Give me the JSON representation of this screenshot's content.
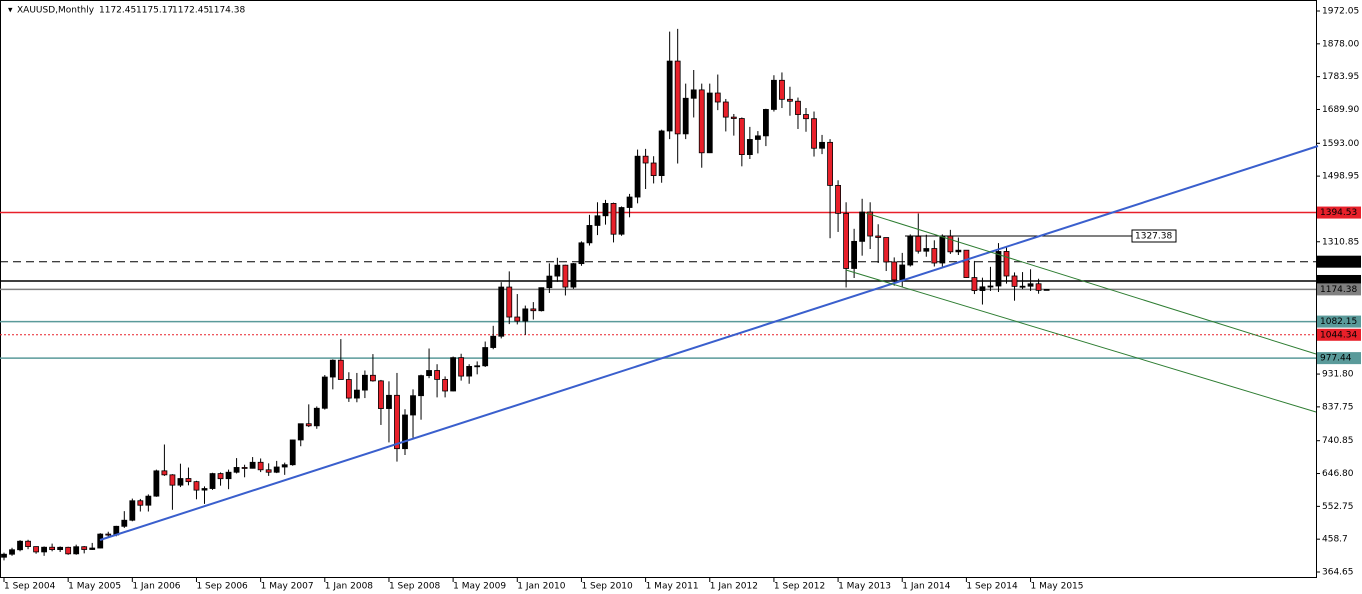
{
  "chart_data": {
    "type": "candlestick",
    "header": {
      "symbol": "XAUUSD,Monthly",
      "open": 1172.45,
      "high": 1175.17,
      "low": 1172.45,
      "close": 1174.38
    },
    "categories": [
      "1 Sep 2004",
      null,
      null,
      null,
      null,
      null,
      null,
      null,
      "1 May 2005",
      null,
      null,
      null,
      null,
      null,
      null,
      null,
      "1 Jan 2006",
      null,
      null,
      null,
      null,
      null,
      null,
      null,
      "1 Sep 2006",
      null,
      null,
      null,
      null,
      null,
      null,
      null,
      "1 May 2007",
      null,
      null,
      null,
      null,
      null,
      null,
      null,
      "1 Jan 2008",
      null,
      null,
      null,
      null,
      null,
      null,
      null,
      "1 Sep 2008",
      null,
      null,
      null,
      null,
      null,
      null,
      null,
      "1 May 2009",
      null,
      null,
      null,
      null,
      null,
      null,
      null,
      "1 Jan 2010",
      null,
      null,
      null,
      null,
      null,
      null,
      null,
      "1 Sep 2010",
      null,
      null,
      null,
      null,
      null,
      null,
      null,
      "1 May 2011",
      null,
      null,
      null,
      null,
      null,
      null,
      null,
      "1 Jan 2012",
      null,
      null,
      null,
      null,
      null,
      null,
      null,
      "1 Sep 2012",
      null,
      null,
      null,
      null,
      null,
      null,
      null,
      "1 May 2013",
      null,
      null,
      null,
      null,
      null,
      null,
      null,
      "1 Jan 2014",
      null,
      null,
      null,
      null,
      null,
      null,
      null,
      "1 Sep 2014",
      null,
      null,
      null,
      null,
      null,
      null,
      null,
      "1 May 2015",
      null,
      null
    ],
    "open": [
      407,
      415.6,
      428.4,
      452.8,
      437.5,
      422.2,
      435.6,
      428.8,
      435.4,
      416.7,
      437.1,
      429.1,
      433.3,
      473.3,
      470.8,
      495.6,
      513.0,
      568.8,
      556.0,
      582.0,
      654.5,
      643.0,
      613.5,
      632.5,
      623.5,
      599.3,
      603.8,
      646.7,
      632.0,
      650.5,
      664.2,
      661.8,
      679.0,
      657.5,
      650.5,
      665.5,
      672.0,
      743.0,
      789.5,
      783.5,
      833.8,
      923.3,
      971.5,
      916.2,
      863.0,
      885.8,
      928.3,
      912.3,
      833.0,
      870.9,
      718.0,
      814.5,
      869.8,
      927.3,
      942.0,
      916.5,
      883.3,
      978.8,
      926.0,
      953.7,
      955.5,
      1007.8,
      1040.2,
      1181.1,
      1095.2,
      1083.5,
      1118.5,
      1113.3,
      1179.3,
      1212.5,
      1243.8,
      1181.0,
      1248.2,
      1307.8,
      1357.6,
      1385.3,
      1420.8,
      1332.5,
      1409.0,
      1439.0,
      1556.0,
      1536.5,
      1500.4,
      1628.3,
      1828.5,
      1620.0,
      1722.0,
      1746.0,
      1565.8,
      1737.0,
      1711.3,
      1668.0,
      1664.0,
      1560.6,
      1604.0,
      1614.3,
      1690.0,
      1773.5,
      1719.0,
      1713.5,
      1675.4,
      1663.5,
      1578.8,
      1595.7,
      1472.3,
      1392.2,
      1234.3,
      1312.0,
      1396.0,
      1327.3,
      1323.0,
      1253.0,
      1201.6,
      1244.3,
      1326.5,
      1283.8,
      1291.5,
      1250.0,
      1327.3,
      1282.0,
      1286.7,
      1208.3,
      1171.0,
      1181.8,
      1184.1,
      1283.1,
      1212.8,
      1183.0,
      1183.5,
      1190.5,
      1172.45
    ],
    "high": [
      420,
      434,
      456,
      457,
      438,
      438,
      446,
      438,
      437,
      443,
      439,
      448,
      476,
      480,
      497,
      539,
      575,
      574,
      587,
      658,
      730,
      645,
      675,
      664,
      626,
      610,
      649,
      650,
      658,
      691,
      672,
      694,
      690,
      676,
      683,
      678,
      744,
      790,
      845,
      839,
      929,
      974,
      1032,
      937,
      935,
      942,
      989,
      915,
      911,
      935,
      831,
      888,
      930,
      1005,
      960,
      925,
      982,
      990,
      960,
      968,
      1025,
      1070,
      1195,
      1226,
      1161,
      1128,
      1138,
      1180,
      1249,
      1265,
      1245,
      1250,
      1312,
      1388,
      1424,
      1431,
      1423,
      1412,
      1448,
      1575,
      1577,
      1556,
      1632,
      1913,
      1921,
      1764,
      1803,
      1764,
      1764,
      1790,
      1720,
      1677,
      1667,
      1640,
      1628,
      1692,
      1788,
      1796,
      1755,
      1724,
      1694,
      1684,
      1617,
      1605,
      1487,
      1424,
      1348,
      1434,
      1424,
      1361,
      1323,
      1266,
      1279,
      1332,
      1392,
      1331,
      1315,
      1332,
      1345,
      1323,
      1287,
      1256,
      1208,
      1239,
      1307,
      1296,
      1223,
      1224,
      1232,
      1205,
      1175.17
    ],
    "low": [
      398,
      411,
      424,
      430,
      417,
      411,
      424,
      422,
      414,
      414,
      418,
      428,
      432,
      462,
      467,
      491,
      510,
      538,
      538,
      580,
      640,
      543,
      608,
      613,
      573,
      560,
      600,
      612,
      602,
      647,
      636,
      661,
      651,
      640,
      648,
      643,
      669,
      725,
      780,
      775,
      830,
      888,
      916,
      852,
      851,
      863,
      910,
      786,
      736,
      681,
      700,
      749,
      801,
      920,
      865,
      865,
      882,
      913,
      904,
      931,
      952,
      1003,
      1034,
      1075,
      1074,
      1044,
      1088,
      1111,
      1164,
      1196,
      1157,
      1176,
      1242,
      1300,
      1330,
      1360,
      1309,
      1328,
      1381,
      1421,
      1462,
      1478,
      1480,
      1605,
      1535,
      1605,
      1667,
      1523,
      1565,
      1688,
      1627,
      1615,
      1527,
      1548,
      1564,
      1585,
      1684,
      1694,
      1672,
      1634,
      1626,
      1555,
      1562,
      1321,
      1339,
      1180,
      1207,
      1271,
      1290,
      1250,
      1227,
      1185,
      1182,
      1240,
      1277,
      1268,
      1240,
      1240,
      1276,
      1273,
      1207,
      1161,
      1131,
      1170,
      1167,
      1191,
      1142,
      1175,
      1170,
      1162,
      1172.45
    ],
    "close": [
      415.6,
      428.4,
      452.8,
      437.5,
      422.2,
      435.6,
      428.8,
      435.4,
      416.7,
      437.1,
      429.1,
      433.3,
      473.3,
      470.8,
      495.6,
      513.0,
      568.8,
      556.0,
      582.0,
      654.5,
      643.0,
      613.5,
      632.5,
      623.5,
      599.3,
      603.8,
      646.7,
      632.0,
      650.5,
      664.2,
      661.8,
      679.0,
      657.5,
      650.5,
      665.5,
      672.0,
      743.0,
      789.5,
      783.5,
      833.8,
      923.3,
      971.5,
      916.2,
      863.0,
      885.8,
      928.3,
      912.3,
      833.0,
      870.9,
      718.0,
      814.5,
      869.8,
      927.3,
      942.0,
      916.5,
      883.3,
      978.8,
      926.0,
      953.7,
      955.5,
      1007.8,
      1040.2,
      1181.1,
      1095.2,
      1083.5,
      1118.5,
      1113.3,
      1179.3,
      1212.5,
      1243.8,
      1181.0,
      1248.2,
      1307.8,
      1357.6,
      1385.3,
      1420.8,
      1332.5,
      1409.0,
      1439.0,
      1556.0,
      1536.5,
      1500.4,
      1628.3,
      1828.5,
      1620.0,
      1722.0,
      1746.0,
      1565.8,
      1737.0,
      1711.3,
      1668.0,
      1664.0,
      1560.6,
      1604.0,
      1614.3,
      1690.0,
      1773.5,
      1719.0,
      1713.5,
      1675.4,
      1663.5,
      1578.8,
      1595.7,
      1472.3,
      1392.2,
      1234.3,
      1312.0,
      1396.0,
      1327.3,
      1323.0,
      1253.0,
      1201.6,
      1244.3,
      1326.5,
      1283.8,
      1291.5,
      1250.0,
      1327.3,
      1282.0,
      1286.7,
      1208.3,
      1171.0,
      1181.8,
      1184.1,
      1283.1,
      1212.8,
      1183.0,
      1183.5,
      1190.5,
      1171.6,
      1174.38
    ],
    "up_color": "#000000",
    "down_color": "#e8202a",
    "ylim": [
      364.65,
      1972.05
    ],
    "yticks": [
      364.65,
      458.7,
      {
        "value": 552.75,
        "label": "552.75"
      },
      {
        "value": 646.8,
        "label": "646.80"
      },
      {
        "value": 740.85,
        "label": "740.85"
      },
      {
        "value": 837.75,
        "label": "837.75"
      },
      {
        "value": 931.8,
        "label": "931.80"
      },
      {
        "value": 1310.85,
        "label": "1310.85"
      },
      {
        "value": 1498.95,
        "label": "1498.95"
      },
      {
        "value": 1593,
        "label": "1593.00"
      },
      {
        "value": 1689.9,
        "label": "1689.90"
      },
      {
        "value": 1783.95,
        "label": "1783.95"
      },
      {
        "value": 1878,
        "label": "1878.00"
      },
      1972.05
    ],
    "levels": [
      {
        "value": 1394.53,
        "color": "#e8202a",
        "style": "solid"
      },
      {
        "value": 1253.77,
        "color": "#000000",
        "style": "dashed"
      },
      {
        "value": 1198.5,
        "label": "1198.50",
        "color": "#000000",
        "style": "solid"
      },
      {
        "value": 1174.38,
        "color": "#808080",
        "style": "solid"
      },
      {
        "value": 1082.15,
        "color": "#5a9a9a",
        "style": "solid"
      },
      {
        "value": 1044.34,
        "color": "#e8202a",
        "style": "dotted"
      },
      {
        "value": 977.44,
        "color": "#5a9a9a",
        "style": "solid"
      }
    ],
    "annotation": {
      "value": 1327.38
    }
  }
}
